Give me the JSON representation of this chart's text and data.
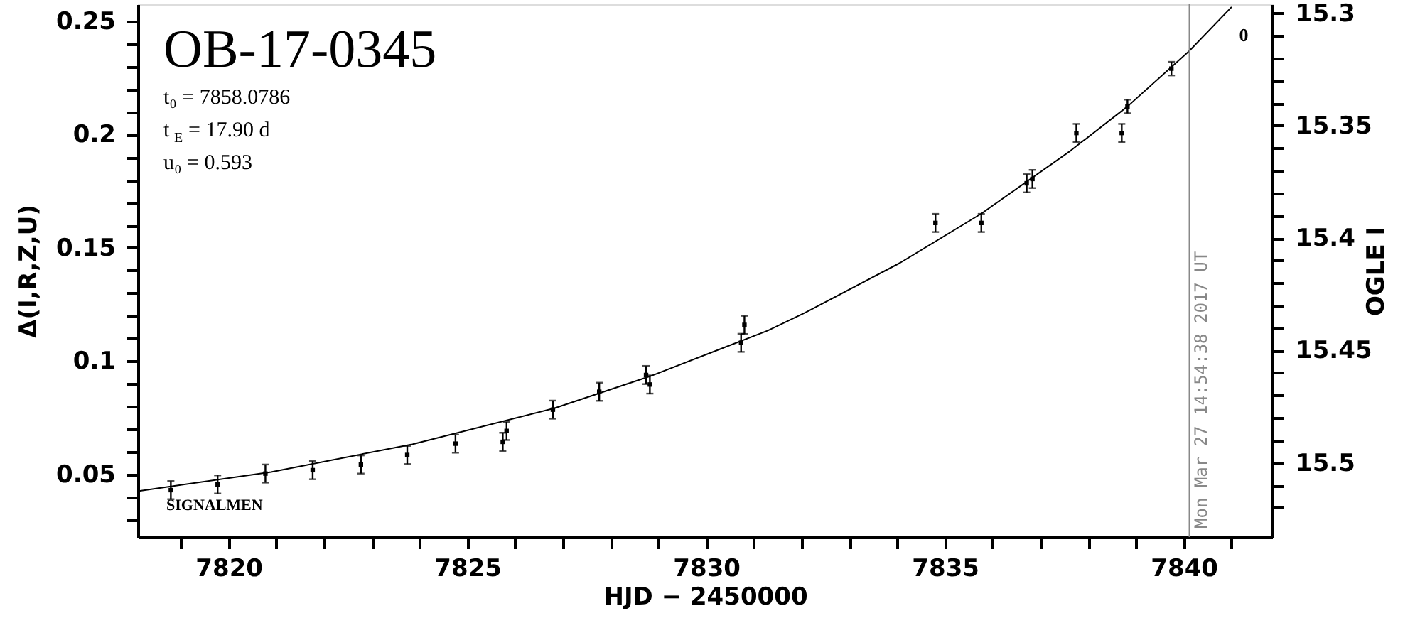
{
  "chart_data": {
    "type": "scatter",
    "title": "OB-17-0345",
    "xlabel": "HJD − 2450000",
    "ylabel": "Δ(I,R,Z,U)",
    "y2label": "OGLE I",
    "annotations": [
      "t₀ = 7858.0786",
      "t$_{E}$ = 17.90 d",
      "u₀ = 0.593",
      "SIGNALMEN",
      "0",
      "Mon Mar 27 14:54:38 2017 UT"
    ],
    "series": [
      {
        "color": "#000000",
        "marker": "square",
        "x": [
          7818.79,
          7819.77,
          7820.77,
          7821.76,
          7822.77,
          7823.74,
          7824.75,
          7825.74,
          7825.82,
          7826.79,
          7827.76,
          7828.74,
          7828.82,
          7830.73,
          7830.8,
          7834.8,
          7835.76,
          7836.71,
          7836.83,
          7837.75,
          7838.7,
          7838.82,
          7839.74
        ],
        "values": [
          0.0431,
          0.0456,
          0.0504,
          0.0519,
          0.0544,
          0.0586,
          0.0636,
          0.0644,
          0.0692,
          0.0786,
          0.0865,
          0.0939,
          0.0897,
          0.1081,
          0.116,
          0.161,
          0.161,
          0.1785,
          0.1804,
          0.2007,
          0.2007,
          0.2124,
          0.2291
        ],
        "errors": [
          0.004,
          0.004,
          0.004,
          0.004,
          0.004,
          0.004,
          0.004,
          0.004,
          0.004,
          0.004,
          0.004,
          0.004,
          0.004,
          0.004,
          0.004,
          0.004,
          0.004,
          0.004,
          0.004,
          0.004,
          0.004,
          0.003,
          0.003
        ]
      },
      {
        "type": "line",
        "color": "#000000",
        "line_style": "solid",
        "marker": "none",
        "x": [
          7818.12,
          7820.89,
          7823.86,
          7826.83,
          7828.82,
          7831.29,
          7832.08,
          7834.06,
          7835.76,
          7837.63,
          7838.82,
          7840.11,
          7841.0
        ],
        "values": [
          0.0427,
          0.0511,
          0.0634,
          0.0793,
          0.0933,
          0.1135,
          0.1215,
          0.1434,
          0.1651,
          0.1929,
          0.2124,
          0.2368,
          0.2563
        ]
      }
    ],
    "xlim": [
      7818.1,
      7841.85
    ],
    "xticks": [
      {
        "value": 7819,
        "label": null
      },
      7820,
      {
        "value": 7821,
        "label": null
      },
      {
        "value": 7822,
        "label": null
      },
      {
        "value": 7823,
        "label": null
      },
      {
        "value": 7824,
        "label": null
      },
      7825,
      {
        "value": 7826,
        "label": null
      },
      {
        "value": 7827,
        "label": null
      },
      {
        "value": 7828,
        "label": null
      },
      {
        "value": 7829,
        "label": null
      },
      7830,
      {
        "value": 7831,
        "label": null
      },
      {
        "value": 7832,
        "label": null
      },
      {
        "value": 7833,
        "label": null
      },
      {
        "value": 7834,
        "label": null
      },
      7835,
      {
        "value": 7836,
        "label": null
      },
      {
        "value": 7837,
        "label": null
      },
      {
        "value": 7838,
        "label": null
      },
      {
        "value": 7839,
        "label": null
      },
      7840,
      {
        "value": 7841,
        "label": null
      }
    ],
    "ylim": [
      0.0224,
      0.2575
    ],
    "yticks": [
      {
        "value": 0.03,
        "label": null
      },
      {
        "value": 0.04,
        "label": null
      },
      0.05,
      {
        "value": 0.06,
        "label": null
      },
      {
        "value": 0.07,
        "label": null
      },
      {
        "value": 0.08,
        "label": null
      },
      {
        "value": 0.09,
        "label": null
      },
      0.1,
      {
        "value": 0.11,
        "label": null
      },
      {
        "value": 0.12,
        "label": null
      },
      {
        "value": 0.13,
        "label": null
      },
      {
        "value": 0.14,
        "label": null
      },
      0.15,
      {
        "value": 0.16,
        "label": null
      },
      {
        "value": 0.17,
        "label": null
      },
      {
        "value": 0.18,
        "label": null
      },
      {
        "value": 0.19,
        "label": null
      },
      0.2,
      {
        "value": 0.21,
        "label": null
      },
      {
        "value": 0.22,
        "label": null
      },
      {
        "value": 0.23,
        "label": null
      },
      {
        "value": 0.24,
        "label": null
      },
      0.25
    ],
    "y2lim": [
      15.533,
      15.296
    ],
    "y2ticks": [
      15.3,
      {
        "value": 15.31,
        "label": null
      },
      {
        "value": 15.32,
        "label": null
      },
      {
        "value": 15.33,
        "label": null
      },
      {
        "value": 15.34,
        "label": null
      },
      15.35,
      {
        "value": 15.36,
        "label": null
      },
      {
        "value": 15.37,
        "label": null
      },
      {
        "value": 15.38,
        "label": null
      },
      {
        "value": 15.39,
        "label": null
      },
      15.4,
      {
        "value": 15.41,
        "label": null
      },
      {
        "value": 15.42,
        "label": null
      },
      {
        "value": 15.43,
        "label": null
      },
      {
        "value": 15.44,
        "label": null
      },
      15.45,
      {
        "value": 15.46,
        "label": null
      },
      {
        "value": 15.47,
        "label": null
      },
      {
        "value": 15.48,
        "label": null
      },
      {
        "value": 15.49,
        "label": null
      },
      15.5,
      {
        "value": 15.51,
        "label": null
      },
      {
        "value": 15.52,
        "label": null
      }
    ],
    "ref_lines": [
      {
        "axis": "x",
        "value": 7840.12,
        "color": "#888888",
        "line_style": "solid"
      }
    ],
    "grid": false
  }
}
